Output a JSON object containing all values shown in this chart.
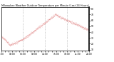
{
  "title": "Milwaukee Weather Outdoor Temperature per Minute (Last 24 Hours)",
  "bg_color": "#ffffff",
  "line_color": "#cc0000",
  "grid_color": "#999999",
  "y_ticks": [
    10,
    20,
    30,
    40,
    50,
    60,
    70,
    80
  ],
  "y_min": 8,
  "y_max": 82,
  "num_points": 1440,
  "seed": 42,
  "title_fontsize": 2.5,
  "tick_fontsize": 2.2,
  "dot_size": 0.3,
  "figsize": [
    1.6,
    0.87
  ],
  "dpi": 100
}
